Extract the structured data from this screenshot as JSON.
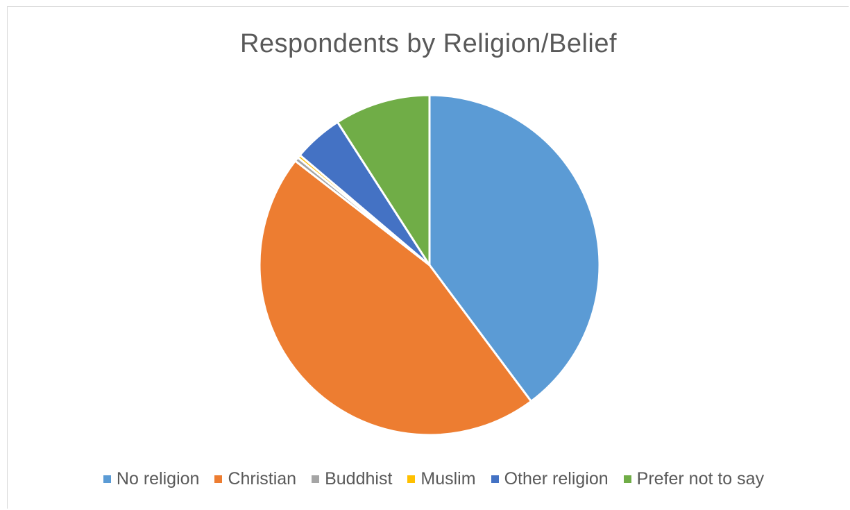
{
  "chart_data": {
    "type": "pie",
    "title": "Respondents by Religion/Belief",
    "legend_position": "bottom",
    "categories": [
      "No religion",
      "Christian",
      "Buddhist",
      "Muslim",
      "Other religion",
      "Prefer not to say"
    ],
    "values": [
      39.8,
      45.7,
      0.4,
      0.3,
      4.7,
      9.1
    ],
    "value_unit": "percent",
    "colors": [
      "#5b9bd5",
      "#ed7d31",
      "#a5a5a5",
      "#ffc000",
      "#4472c4",
      "#70ad47"
    ],
    "start_angle_deg": 0,
    "direction": "clockwise"
  }
}
